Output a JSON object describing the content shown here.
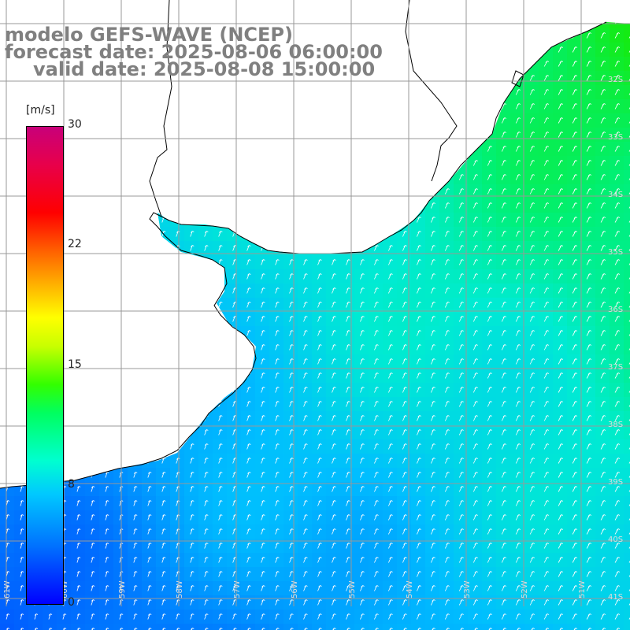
{
  "title": {
    "line1": "modelo GEFS-WAVE (NCEP)",
    "line2": "forecast date: 2025-08-06 06:00:00",
    "line3": "valid date: 2025-08-08 15:00:00"
  },
  "colorbar": {
    "unit": "[m/s]",
    "ticks": [
      "30",
      "22",
      "15",
      "8",
      "0"
    ],
    "tick_values": [
      30,
      22,
      15,
      8,
      0
    ]
  },
  "axes": {
    "lon_labels": [
      "61W",
      "60W",
      "59W",
      "58W",
      "57W",
      "56W",
      "55W",
      "54W",
      "53W",
      "52W",
      "51W"
    ],
    "lat_labels": [
      "32S",
      "33S",
      "34S",
      "35S",
      "36S",
      "37S",
      "38S",
      "39S",
      "40S",
      "41S"
    ]
  },
  "field": {
    "variable": "wind speed",
    "colors": {
      "low": "#0000ff",
      "mid": "#00ffd0",
      "high": "#00ff00",
      "land": "#ffffff",
      "grid": "#888888",
      "coast": "#000000",
      "arrows": "#ffffff"
    }
  }
}
